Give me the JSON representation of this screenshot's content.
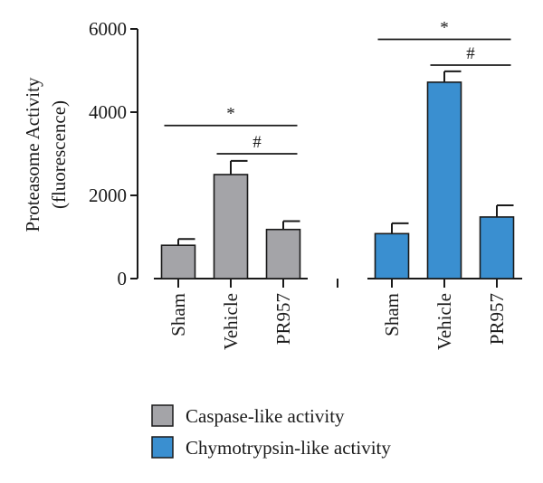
{
  "chart_data": {
    "type": "bar",
    "ylabel_lines": [
      "Proteasome Activity",
      "(fluorescence)"
    ],
    "ylim": [
      0,
      6000
    ],
    "yticks": [
      0,
      2000,
      4000,
      6000
    ],
    "groups": [
      {
        "series": "Caspase-like activity",
        "color": "#a4a4a8",
        "bars": [
          {
            "label": "Sham",
            "value": 800,
            "error": 150
          },
          {
            "label": "Vehicle",
            "value": 2500,
            "error": 330
          },
          {
            "label": "PR957",
            "value": 1180,
            "error": 200
          }
        ],
        "significance": [
          {
            "from": 0,
            "to": 2,
            "symbol": "*",
            "y": 3680
          },
          {
            "from": 1,
            "to": 2,
            "symbol": "#",
            "y": 3000
          }
        ]
      },
      {
        "series": "Chymotrypsin-like activity",
        "color": "#3a8fd0",
        "bars": [
          {
            "label": "Sham",
            "value": 1080,
            "error": 250
          },
          {
            "label": "Vehicle",
            "value": 4720,
            "error": 260
          },
          {
            "label": "PR957",
            "value": 1480,
            "error": 280
          }
        ],
        "significance": [
          {
            "from": 0,
            "to": 2,
            "symbol": "*",
            "y": 5750
          },
          {
            "from": 1,
            "to": 2,
            "symbol": "#",
            "y": 5130
          }
        ]
      }
    ],
    "legend": [
      {
        "label": "Caspase-like activity",
        "color": "#a4a4a8"
      },
      {
        "label": "Chymotrypsin-like activity",
        "color": "#3a8fd0"
      }
    ],
    "legend_position": "bottom-center",
    "grid": false
  }
}
